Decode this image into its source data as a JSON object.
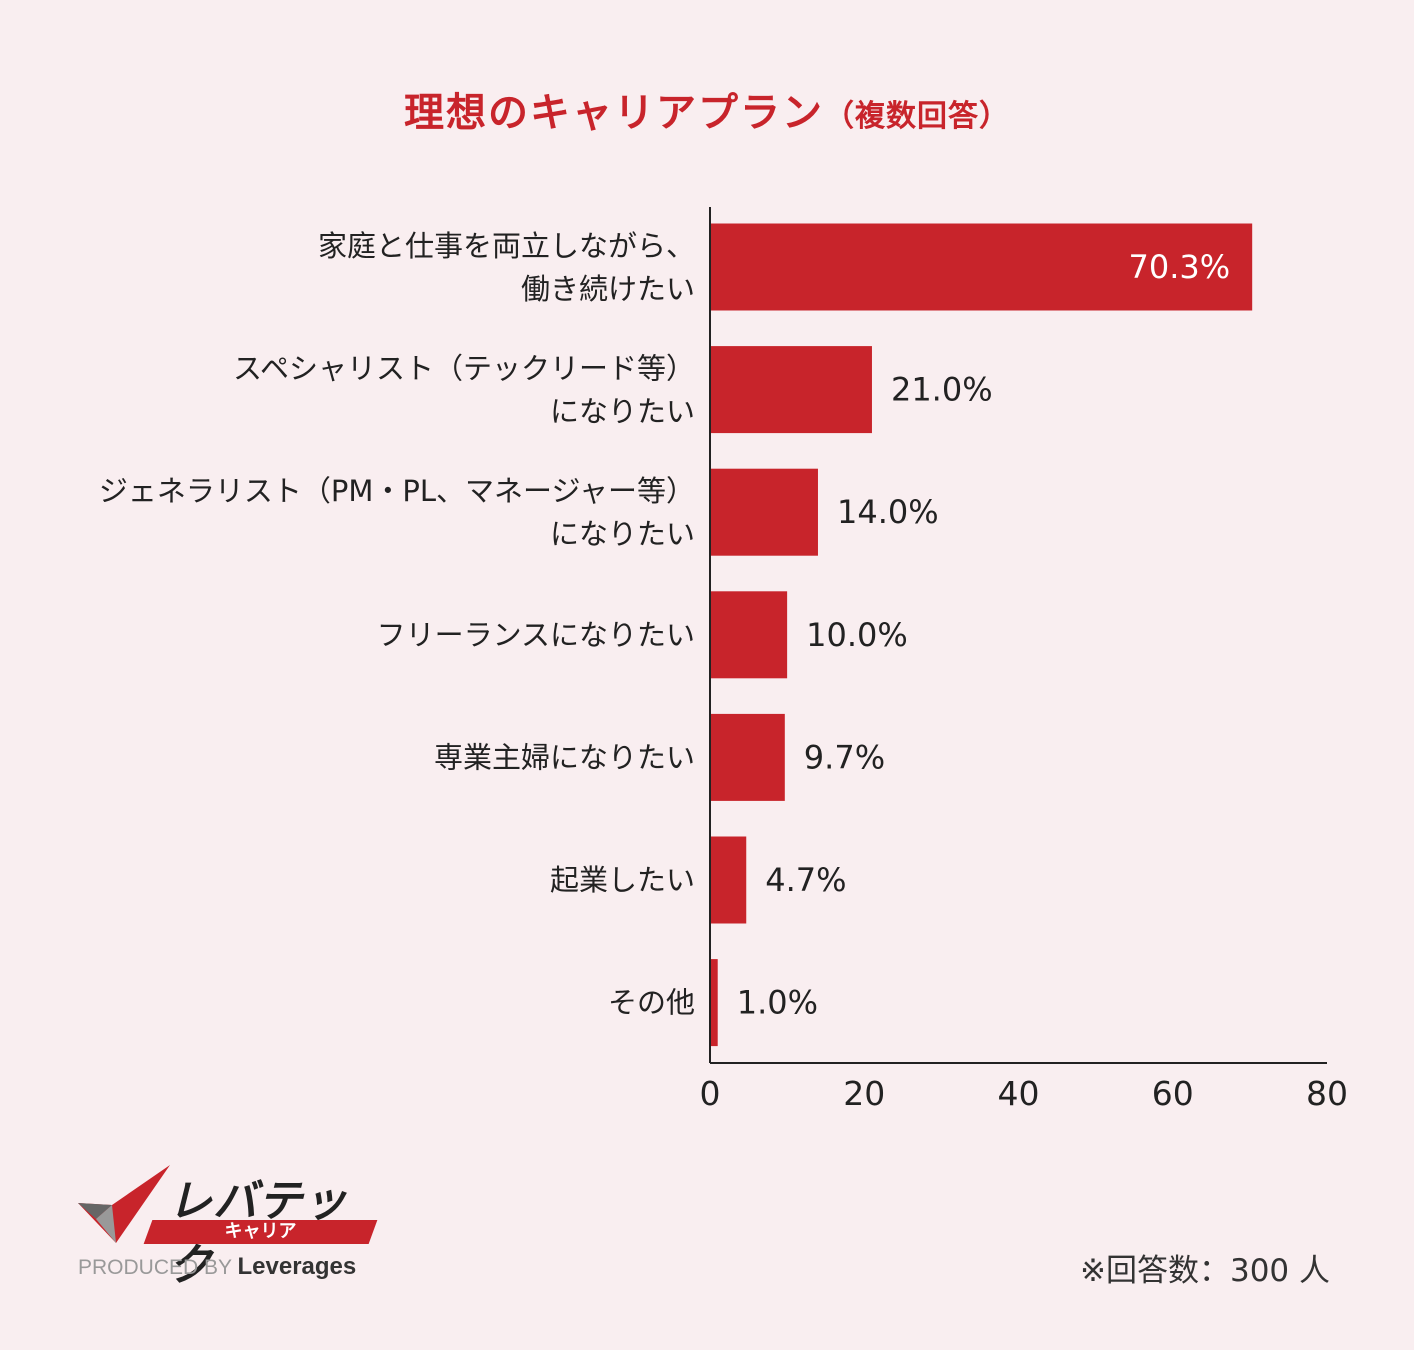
{
  "title": {
    "main": "理想のキャリアプラン",
    "sub": "（複数回答）"
  },
  "colors": {
    "bar": "#c8242b",
    "title": "#c8242b",
    "background": "#f9eef0",
    "text": "#222222"
  },
  "chart_data": {
    "type": "bar",
    "orientation": "horizontal",
    "title": "理想のキャリアプラン（複数回答）",
    "categories": [
      [
        "家庭と仕事を両立しながら、",
        "働き続けたい"
      ],
      [
        "スペシャリスト（テックリード等）",
        "になりたい"
      ],
      [
        "ジェネラリスト（PM・PL、マネージャー等）",
        "になりたい"
      ],
      [
        "フリーランスになりたい"
      ],
      [
        "専業主婦になりたい"
      ],
      [
        "起業したい"
      ],
      [
        "その他"
      ]
    ],
    "values": [
      70.3,
      21.0,
      14.0,
      10.0,
      9.7,
      4.7,
      1.0
    ],
    "value_labels": [
      "70.3%",
      "21.0%",
      "14.0%",
      "10.0%",
      "9.7%",
      "4.7%",
      "1.0%"
    ],
    "xlim": [
      0,
      80
    ],
    "xticks": [
      0,
      20,
      40,
      60,
      80
    ],
    "xlabel": "",
    "ylabel": "",
    "grid": false
  },
  "logo": {
    "name": "レバテック",
    "sub": "キャリア",
    "produced_by": "PRODUCED BY",
    "brand": "Leverages"
  },
  "note": "※回答数：300 人"
}
